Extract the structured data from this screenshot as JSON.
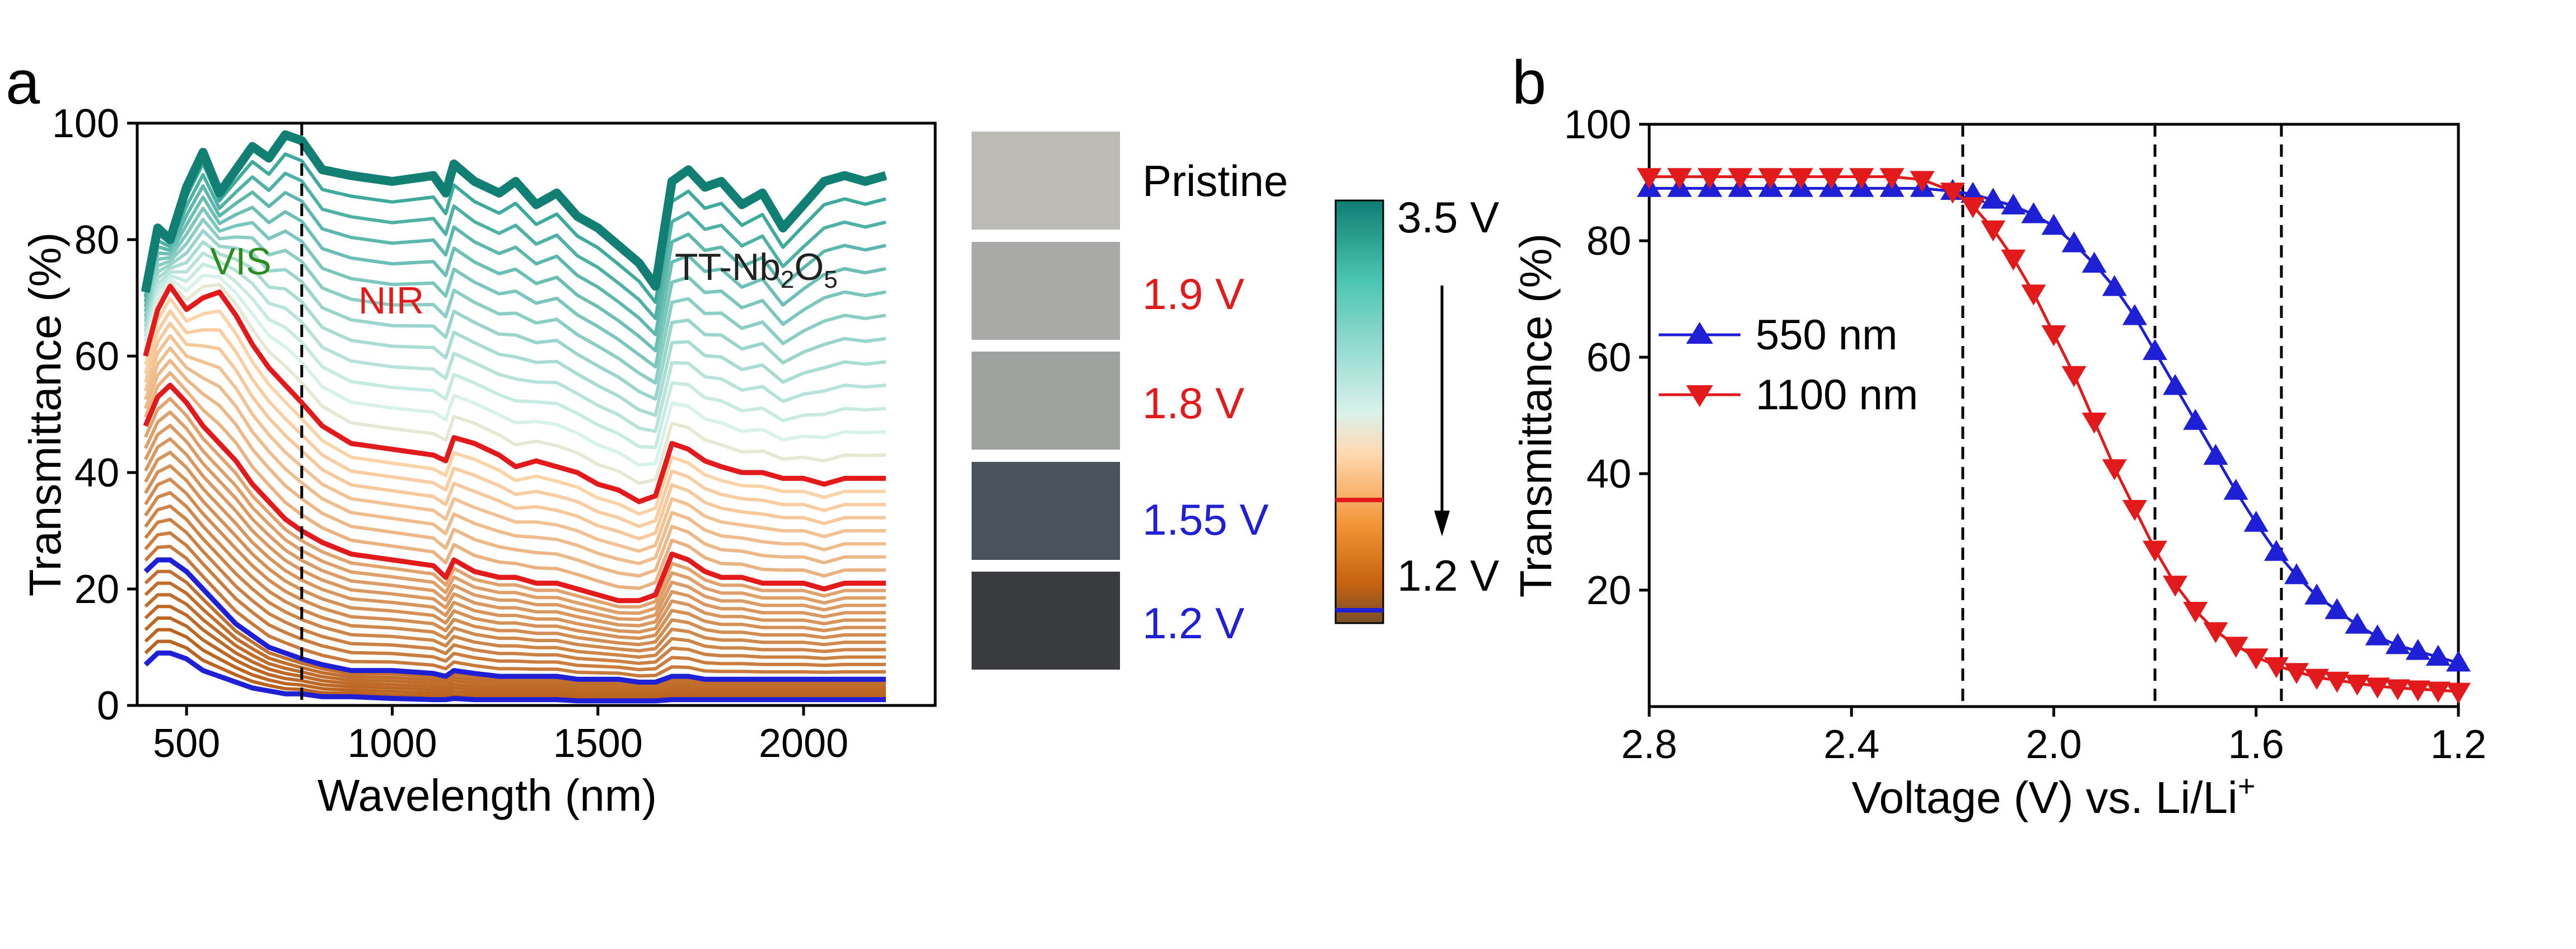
{
  "panel_a": {
    "label": "a",
    "annotations": {
      "vis": "VIS",
      "nir": "NIR",
      "material_main": "TT-Nb",
      "material_sub1": "2",
      "material_o": "O",
      "material_sub2": "5"
    },
    "swatches": [
      {
        "label": "Pristine",
        "fill": "#bcbab5",
        "label_color": "#000000"
      },
      {
        "label": "1.9 V",
        "fill": "#a9aaa7",
        "label_color": "#e31a1c"
      },
      {
        "label": "1.8 V",
        "fill": "#9fa3a0",
        "label_color": "#e31a1c"
      },
      {
        "label": "1.55 V",
        "fill": "#4a525a",
        "label_color": "#1f1fd6"
      },
      {
        "label": "1.2 V",
        "fill": "#3a3b3f",
        "label_color": "#1f1fd6"
      }
    ],
    "colorbar": {
      "top_label": "3.5 V",
      "bottom_label": "1.2 V",
      "colors": [
        "#0e7d73",
        "#48c3b0",
        "#d9f1ec",
        "#ffd9b0",
        "#f29334",
        "#c9640f",
        "#7a4f2b"
      ]
    }
  },
  "panel_b": {
    "label": "b",
    "xlabel_main": "Voltage (V) vs. Li/Li",
    "xlabel_sup": "+"
  },
  "chart_data": [
    {
      "type": "line",
      "title": "",
      "xlabel": "Wavelength (nm)",
      "ylabel": "Transmittance (%)",
      "xlim": [
        380,
        2320
      ],
      "ylim": [
        0,
        100
      ],
      "x_ticks": [
        500,
        1000,
        1500,
        2000
      ],
      "y_ticks": [
        0,
        20,
        40,
        60,
        80,
        100
      ],
      "vertical_marker_x": 780,
      "wavelengths": [
        400,
        430,
        460,
        500,
        540,
        580,
        620,
        660,
        700,
        740,
        780,
        830,
        900,
        1000,
        1100,
        1130,
        1150,
        1200,
        1260,
        1300,
        1350,
        1400,
        1450,
        1500,
        1550,
        1600,
        1640,
        1680,
        1720,
        1760,
        1800,
        1850,
        1900,
        1950,
        2000,
        2050,
        2100,
        2150,
        2200
      ],
      "series": [
        {
          "role": "pristine",
          "color": "#127f74",
          "values": [
            71,
            82,
            80,
            89,
            95,
            88,
            92,
            96,
            94,
            98,
            97,
            92,
            91,
            90,
            91,
            88,
            93,
            90,
            88,
            90,
            86,
            88,
            84,
            82,
            79,
            76,
            72,
            90,
            92,
            89,
            90,
            86,
            88,
            82,
            86,
            90,
            91,
            90,
            91
          ]
        },
        {
          "role": "highlight",
          "color": "#e31a1c",
          "values": [
            60,
            68,
            72,
            68,
            70,
            71,
            67,
            62,
            58,
            55,
            52,
            48,
            45,
            44,
            43,
            42,
            46,
            45,
            43,
            41,
            42,
            41,
            40,
            38,
            37,
            35,
            36,
            45,
            44,
            42,
            41,
            40,
            40,
            39,
            39,
            38,
            39,
            39,
            39
          ]
        },
        {
          "role": "highlight",
          "color": "#e31a1c",
          "values": [
            48,
            53,
            55,
            52,
            48,
            45,
            42,
            38,
            35,
            32,
            30,
            28,
            26,
            25,
            24,
            22,
            25,
            23,
            22,
            22,
            21,
            21,
            20,
            19,
            18,
            18,
            19,
            26,
            25,
            23,
            22,
            22,
            21,
            21,
            21,
            20,
            21,
            21,
            21
          ]
        },
        {
          "role": "lithiated",
          "color": "#1f1fd6",
          "values": [
            23,
            25,
            25,
            23,
            20,
            17,
            14,
            12,
            10,
            9,
            8,
            7,
            6,
            6,
            5.5,
            5,
            6,
            5.5,
            5,
            5,
            5,
            5,
            4.5,
            4.5,
            4.5,
            4,
            4,
            5,
            5,
            4.5,
            4.5,
            4.5,
            4.5,
            4.5,
            4.5,
            4.5,
            4.5,
            4.5,
            4.5
          ]
        },
        {
          "role": "lithiated",
          "color": "#1f1fd6",
          "values": [
            7,
            9,
            9,
            8,
            6,
            5,
            4,
            3,
            2.5,
            2,
            2,
            1.5,
            1.5,
            1.2,
            1,
            1,
            1.2,
            1,
            1,
            1,
            1,
            1,
            0.8,
            0.8,
            0.8,
            0.8,
            0.8,
            1,
            1,
            1,
            1,
            1,
            1,
            1,
            1,
            1,
            1,
            1,
            1
          ]
        }
      ]
    },
    {
      "type": "line",
      "title": "",
      "xlabel": "Voltage (V) vs. Li/Li+",
      "ylabel": "Transmittance (%)",
      "xlim": [
        2.8,
        1.2
      ],
      "ylim": [
        0,
        100
      ],
      "x_reversed": true,
      "x_ticks": [
        2.8,
        2.4,
        2.0,
        1.6,
        1.2
      ],
      "y_ticks": [
        20,
        40,
        60,
        80,
        100
      ],
      "vertical_markers": [
        2.18,
        1.8,
        1.55
      ],
      "legend_position": "left",
      "series": [
        {
          "name": "550 nm",
          "color": "#1f1fd6",
          "marker": "triangle-up",
          "x": [
            2.8,
            2.74,
            2.68,
            2.62,
            2.56,
            2.5,
            2.44,
            2.38,
            2.32,
            2.26,
            2.2,
            2.16,
            2.12,
            2.08,
            2.04,
            2.0,
            1.96,
            1.92,
            1.88,
            1.84,
            1.8,
            1.76,
            1.72,
            1.68,
            1.64,
            1.6,
            1.56,
            1.52,
            1.48,
            1.44,
            1.4,
            1.36,
            1.32,
            1.28,
            1.24,
            1.2
          ],
          "y": [
            89,
            89,
            89,
            89,
            89,
            89,
            89,
            89,
            89,
            89,
            88.5,
            88,
            87,
            86,
            84.5,
            82.5,
            79.5,
            76,
            72,
            67,
            61,
            55,
            49,
            43,
            37,
            31.5,
            26.5,
            22.5,
            19,
            16.5,
            14,
            12,
            10.5,
            9.5,
            8.5,
            7.5
          ]
        },
        {
          "name": "1100 nm",
          "color": "#e31a1c",
          "marker": "triangle-down",
          "x": [
            2.8,
            2.74,
            2.68,
            2.62,
            2.56,
            2.5,
            2.44,
            2.38,
            2.32,
            2.26,
            2.2,
            2.16,
            2.12,
            2.08,
            2.04,
            2.0,
            1.96,
            1.92,
            1.88,
            1.84,
            1.8,
            1.76,
            1.72,
            1.68,
            1.64,
            1.6,
            1.56,
            1.52,
            1.48,
            1.44,
            1.4,
            1.36,
            1.32,
            1.28,
            1.24,
            1.2
          ],
          "y": [
            91,
            91,
            91,
            91,
            91,
            91,
            91,
            91,
            91,
            90.5,
            88.5,
            86,
            82,
            77,
            71,
            64,
            57,
            49,
            41,
            34,
            27,
            21,
            16.5,
            13,
            10.5,
            8.5,
            7,
            6,
            5,
            4.5,
            4,
            3.5,
            3.2,
            3,
            2.8,
            2.6
          ]
        }
      ]
    }
  ]
}
